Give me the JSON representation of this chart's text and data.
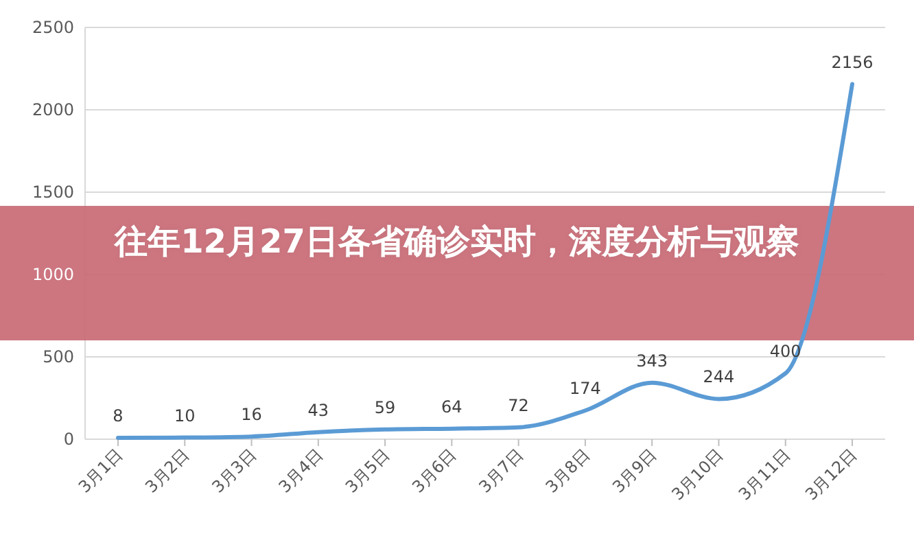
{
  "chart_data": {
    "type": "line",
    "title": "往年12月27日各省确诊实时，深度分析与观察",
    "categories": [
      "3月1日",
      "3月2日",
      "3月3日",
      "3月4日",
      "3月5日",
      "3月6日",
      "3月7日",
      "3月8日",
      "3月9日",
      "3月10日",
      "3月11日",
      "3月12日"
    ],
    "series": [
      {
        "color": "#5b9bd5",
        "values": [
          8,
          10,
          16,
          43,
          59,
          64,
          72,
          174,
          343,
          244,
          400,
          2156
        ]
      }
    ],
    "ylim": [
      0,
      2500
    ],
    "yticks": [
      0,
      500,
      1000,
      1500,
      2000,
      2500
    ],
    "grid": "y",
    "data_labels": true,
    "marker": "none",
    "line_style": "solid"
  }
}
